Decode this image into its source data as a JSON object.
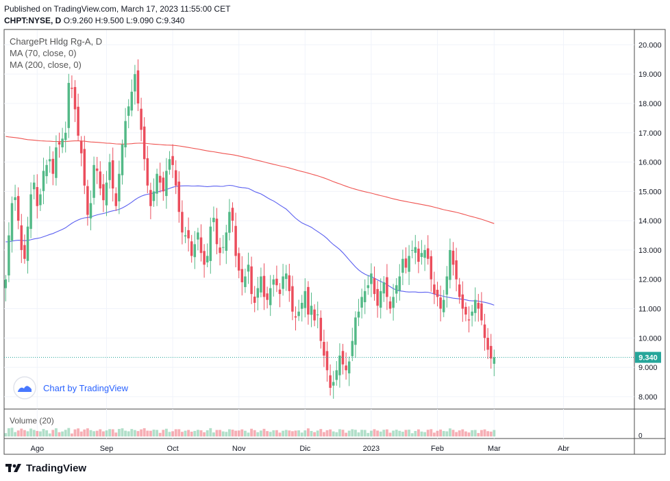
{
  "header": {
    "published": "Published on TradingView.com, March 17, 2023 11:55:00 CET",
    "symbol_line": "CHPT:NYSE, D",
    "ohlc": "O:9.260 H:9.500 L:9.090 C:9.340"
  },
  "legend": {
    "title": "ChargePt Hldg Rg-A, D",
    "ma70": "MA (70, close, 0)",
    "ma200": "MA (200, close, 0)"
  },
  "volume_pane": {
    "label": "Volume (20)",
    "zero_label": "0"
  },
  "watermark": "Chart by TradingView",
  "footer_brand": "TradingView",
  "colors": {
    "up": "#53b987",
    "down": "#eb4d5c",
    "ma70": "#5a5ff0",
    "ma200": "#ef5350",
    "last_price": "#26a69a",
    "grid": "#f0f3fa",
    "text": "#131722"
  },
  "chart_data": {
    "type": "candlestick",
    "title": "ChargePt Hldg Rg-A, D",
    "ylim": [
      7.6,
      20.5
    ],
    "y_ticks": [
      8,
      9,
      10,
      11,
      12,
      13,
      14,
      15,
      16,
      17,
      18,
      19,
      20
    ],
    "y_tick_labels": [
      "8.000",
      "9.000",
      "10.000",
      "11.000",
      "12.000",
      "13.000",
      "14.000",
      "15.000",
      "16.000",
      "17.000",
      "18.000",
      "19.000",
      "20.000"
    ],
    "last_price": 9.34,
    "last_price_label": "9.340",
    "x_labels": [
      {
        "label": "Ago",
        "index": 10
      },
      {
        "label": "Sep",
        "index": 32
      },
      {
        "label": "Oct",
        "index": 53
      },
      {
        "label": "Nov",
        "index": 74
      },
      {
        "label": "Dic",
        "index": 95
      },
      {
        "label": "2023",
        "index": 116
      },
      {
        "label": "Feb",
        "index": 137
      },
      {
        "label": "Mar",
        "index": 155
      },
      {
        "label": "Abr",
        "index": 177
      }
    ],
    "slots": 200,
    "closes": [
      12.0,
      13.5,
      14.6,
      14.8,
      14.0,
      13.0,
      12.7,
      13.8,
      14.9,
      15.3,
      14.5,
      14.9,
      15.7,
      15.9,
      16.1,
      15.6,
      16.5,
      16.6,
      16.8,
      17.0,
      18.7,
      18.5,
      17.8,
      16.9,
      16.3,
      15.2,
      14.2,
      14.6,
      15.9,
      15.7,
      15.1,
      14.7,
      15.3,
      16.0,
      15.1,
      14.5,
      15.6,
      16.6,
      17.4,
      17.9,
      18.4,
      19.0,
      18.0,
      17.1,
      16.1,
      15.2,
      14.5,
      15.0,
      15.6,
      15.3,
      15.0,
      15.7,
      16.1,
      15.9,
      15.2,
      14.3,
      13.6,
      13.5,
      13.4,
      12.8,
      13.2,
      13.6,
      12.9,
      12.5,
      12.8,
      13.8,
      14.1,
      13.2,
      12.9,
      13.1,
      13.6,
      14.3,
      14.0,
      12.8,
      12.3,
      11.9,
      12.1,
      12.5,
      11.5,
      11.2,
      11.7,
      12.1,
      11.4,
      11.3,
      11.7,
      12.0,
      11.8,
      11.5,
      12.1,
      12.2,
      11.6,
      10.9,
      10.7,
      10.9,
      11.2,
      11.6,
      10.8,
      11.1,
      10.6,
      10.8,
      9.9,
      9.4,
      8.9,
      8.3,
      8.5,
      8.9,
      9.4,
      9.1,
      8.9,
      9.2,
      9.9,
      10.7,
      10.9,
      11.4,
      11.6,
      11.8,
      12.2,
      11.5,
      11.1,
      11.6,
      11.9,
      11.4,
      11.0,
      11.4,
      11.8,
      12.1,
      12.7,
      12.4,
      12.8,
      13.0,
      13.1,
      12.6,
      12.9,
      13.0,
      12.7,
      12.0,
      11.5,
      11.4,
      11.0,
      11.3,
      12.1,
      13.0,
      12.5,
      12.0,
      11.4,
      11.0,
      10.8,
      10.6,
      10.9,
      11.3,
      11.0,
      10.6,
      10.0,
      9.6,
      9.3,
      9.34
    ]
  }
}
